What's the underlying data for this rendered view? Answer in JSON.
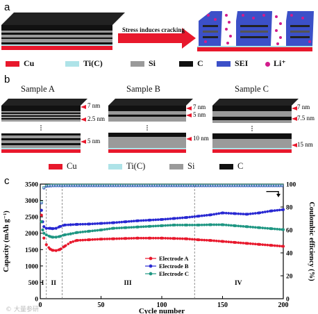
{
  "panel_a": {
    "label": "a",
    "arrow_caption": "Stress induces cracking",
    "legend": [
      {
        "label": "Cu",
        "color": "#e8182c",
        "shape": "bar"
      },
      {
        "label": "Ti(C)",
        "color": "#aee3e8",
        "shape": "bar"
      },
      {
        "label": "Si",
        "color": "#9a9a9a",
        "shape": "bar"
      },
      {
        "label": "C",
        "color": "#111111",
        "shape": "bar"
      },
      {
        "label": "SEI",
        "color": "#3c50c8",
        "shape": "bar"
      },
      {
        "label": "Li⁺",
        "color": "#d21c8c",
        "shape": "dot"
      }
    ]
  },
  "panel_b": {
    "label": "b",
    "samples": [
      {
        "title": "Sample A",
        "top_thickness": "7 nm",
        "stack_thickness": "2.5 nm",
        "bottom_thickness": "5 nm"
      },
      {
        "title": "Sample B",
        "top_thickness": "7 nm",
        "stack_thickness": "5 nm",
        "bottom_thickness": "10 nm"
      },
      {
        "title": "Sample C",
        "top_thickness": "7 nm",
        "stack_thickness": "7.5 nm",
        "bottom_thickness": "15 nm"
      }
    ],
    "legend": [
      {
        "label": "Cu",
        "color": "#e8182c"
      },
      {
        "label": "Ti(C)",
        "color": "#aee3e8"
      },
      {
        "label": "Si",
        "color": "#9a9a9a"
      },
      {
        "label": "C",
        "color": "#111111"
      }
    ]
  },
  "panel_c": {
    "label": "c"
  },
  "chart_data": {
    "type": "scatter",
    "xlabel": "Cycle number",
    "ylabel_left": "Capacity (mAh g⁻¹)",
    "ylabel_right": "Coulombic efficiency (%)",
    "xlim": [
      0,
      200
    ],
    "ylim_left": [
      0,
      3500
    ],
    "ylim_right": [
      0,
      100
    ],
    "xticks": [
      0,
      50,
      100,
      150,
      200
    ],
    "yticks_left": [
      0,
      500,
      1000,
      1500,
      2000,
      2500,
      3000,
      3500
    ],
    "yticks_right": [
      0,
      20,
      40,
      60,
      80,
      100
    ],
    "stage_boundaries": [
      5,
      18,
      127
    ],
    "stages": [
      {
        "label": "I",
        "x": 2
      },
      {
        "label": "II",
        "x": 11
      },
      {
        "label": "III",
        "x": 72
      },
      {
        "label": "IV",
        "x": 163
      }
    ],
    "series": [
      {
        "name": "Electrode A",
        "color": "#e8182c",
        "x": [
          1,
          2,
          3,
          5,
          8,
          10,
          13,
          16,
          20,
          25,
          30,
          40,
          50,
          60,
          70,
          80,
          90,
          100,
          110,
          120,
          130,
          140,
          150,
          160,
          170,
          180,
          190,
          200
        ],
        "capacity": [
          2550,
          2100,
          1850,
          1650,
          1520,
          1480,
          1470,
          1500,
          1600,
          1720,
          1780,
          1800,
          1820,
          1830,
          1840,
          1850,
          1850,
          1850,
          1840,
          1830,
          1800,
          1780,
          1750,
          1720,
          1690,
          1660,
          1630,
          1600
        ]
      },
      {
        "name": "Electrode B",
        "color": "#2828d2",
        "x": [
          1,
          2,
          3,
          5,
          8,
          10,
          13,
          16,
          20,
          25,
          30,
          40,
          50,
          60,
          70,
          80,
          90,
          100,
          110,
          120,
          130,
          140,
          150,
          160,
          170,
          180,
          190,
          200
        ],
        "capacity": [
          2700,
          2350,
          2200,
          2150,
          2150,
          2140,
          2150,
          2200,
          2250,
          2260,
          2270,
          2280,
          2300,
          2320,
          2350,
          2380,
          2400,
          2420,
          2450,
          2480,
          2520,
          2560,
          2620,
          2600,
          2580,
          2620,
          2680,
          2720
        ]
      },
      {
        "name": "Electrode C",
        "color": "#1e9682",
        "x": [
          1,
          2,
          3,
          5,
          8,
          10,
          13,
          16,
          20,
          25,
          30,
          40,
          50,
          60,
          70,
          80,
          90,
          100,
          110,
          120,
          130,
          140,
          150,
          160,
          170,
          180,
          190,
          200
        ],
        "capacity": [
          2350,
          2100,
          2000,
          1950,
          1900,
          1880,
          1880,
          1900,
          1950,
          1980,
          2020,
          2060,
          2100,
          2150,
          2170,
          2190,
          2210,
          2230,
          2250,
          2250,
          2250,
          2260,
          2260,
          2230,
          2200,
          2170,
          2140,
          2110
        ]
      }
    ],
    "coulombic_efficiency": {
      "x": [
        1,
        2,
        3,
        4,
        5,
        10,
        20,
        50,
        100,
        150,
        200
      ],
      "values": [
        84,
        93,
        97,
        98,
        98.5,
        99,
        99,
        99,
        99,
        99,
        99
      ]
    },
    "legend_placement": "lower-center"
  },
  "watermark": "© 大量参研"
}
